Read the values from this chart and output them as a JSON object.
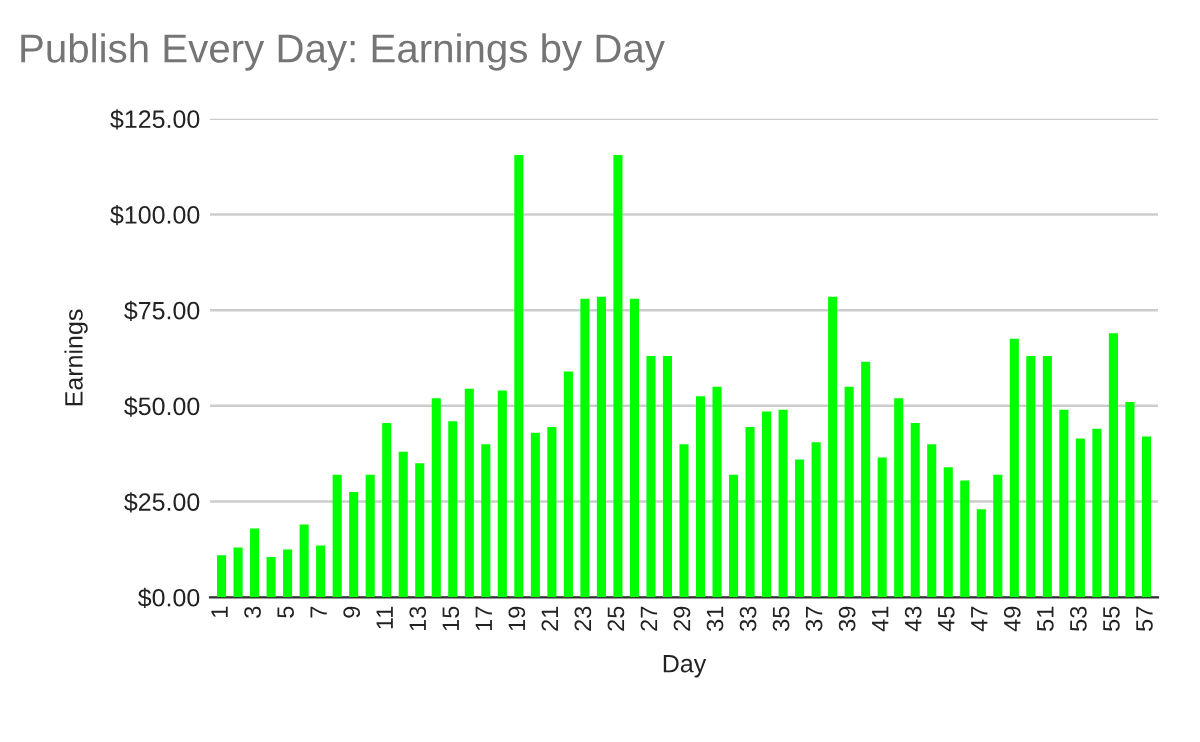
{
  "chart_data": {
    "type": "bar",
    "title": "Publish Every Day: Earnings by Day",
    "xlabel": "Day",
    "ylabel": "Earnings",
    "categories": [
      "1",
      null,
      "3",
      null,
      "5",
      null,
      "7",
      null,
      "9",
      null,
      "11",
      null,
      "13",
      null,
      "15",
      null,
      "17",
      null,
      "19",
      null,
      "21",
      null,
      "23",
      null,
      "25",
      null,
      "27",
      null,
      "29",
      null,
      "31",
      null,
      "33",
      null,
      "35",
      null,
      "37",
      null,
      "39",
      null,
      "41",
      null,
      "43",
      null,
      "45",
      null,
      "47",
      null,
      "49",
      null,
      "51",
      null,
      "53",
      null,
      "55",
      null,
      "57"
    ],
    "values": [
      11,
      13,
      18,
      10.5,
      12.5,
      19,
      13.5,
      32,
      27.5,
      32,
      45.5,
      38,
      35,
      52,
      46,
      54.5,
      40,
      54,
      115.5,
      43,
      44.5,
      59,
      78,
      78.5,
      115.5,
      78,
      63,
      63,
      40,
      52.5,
      55,
      32,
      44.5,
      48.5,
      49,
      36,
      40.5,
      78.5,
      55,
      61.5,
      36.5,
      52,
      45.5,
      40,
      34,
      30.5,
      23,
      32,
      67.5,
      63,
      63,
      49,
      41.5,
      44,
      69,
      51,
      42
    ],
    "color": "#00ff00",
    "ylim": [
      0,
      125
    ],
    "yticks": [
      {
        "value": 0,
        "label": "$0.00"
      },
      {
        "value": 25,
        "label": "$25.00"
      },
      {
        "value": 50,
        "label": "$50.00"
      },
      {
        "value": 75,
        "label": "$75.00"
      },
      {
        "value": 100,
        "label": "$100.00"
      },
      {
        "value": 125,
        "label": "$125.00"
      }
    ],
    "grid": "y",
    "legend": false
  }
}
